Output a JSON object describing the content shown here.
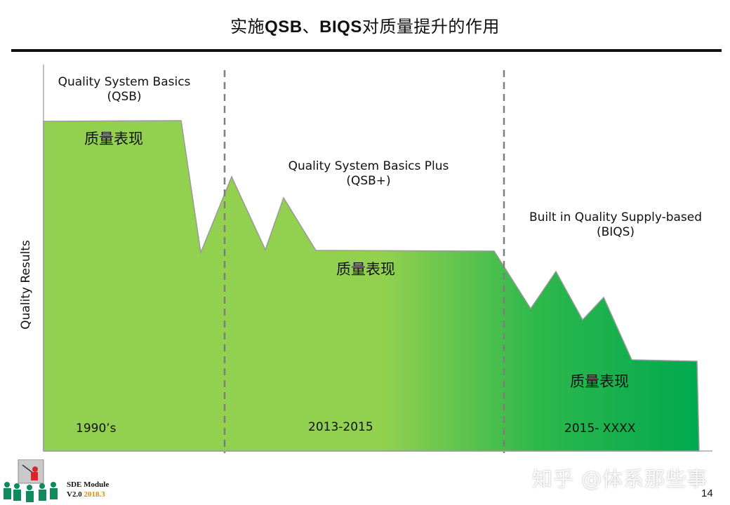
{
  "slide": {
    "title_prefix": "实施",
    "title_bold_1": "QSB",
    "title_sep": "、",
    "title_bold_2": "BIQS",
    "title_suffix": "对质量提升的作用",
    "page_number": "14"
  },
  "y_axis_label": "Quality Results",
  "phases": [
    {
      "name": "Quality System Basics",
      "abbr": "(QSB)",
      "quality_label": "质量表现",
      "period": "1990’s"
    },
    {
      "name": "Quality System Basics Plus",
      "abbr": "(QSB+)",
      "quality_label": "质量表现",
      "period": "2013-2015"
    },
    {
      "name": "Built in Quality Supply-based",
      "abbr": "(BIQS)",
      "quality_label": "质量表现",
      "period": "2015- XXXX"
    }
  ],
  "footer": {
    "module": "SDE Module",
    "version": "V2.0",
    "date": "2018.3"
  },
  "watermark": "知乎 @体系那些事",
  "colors": {
    "light_green": "#92d050",
    "dark_green": "#00a94f",
    "date_orange": "#e58a00"
  }
}
